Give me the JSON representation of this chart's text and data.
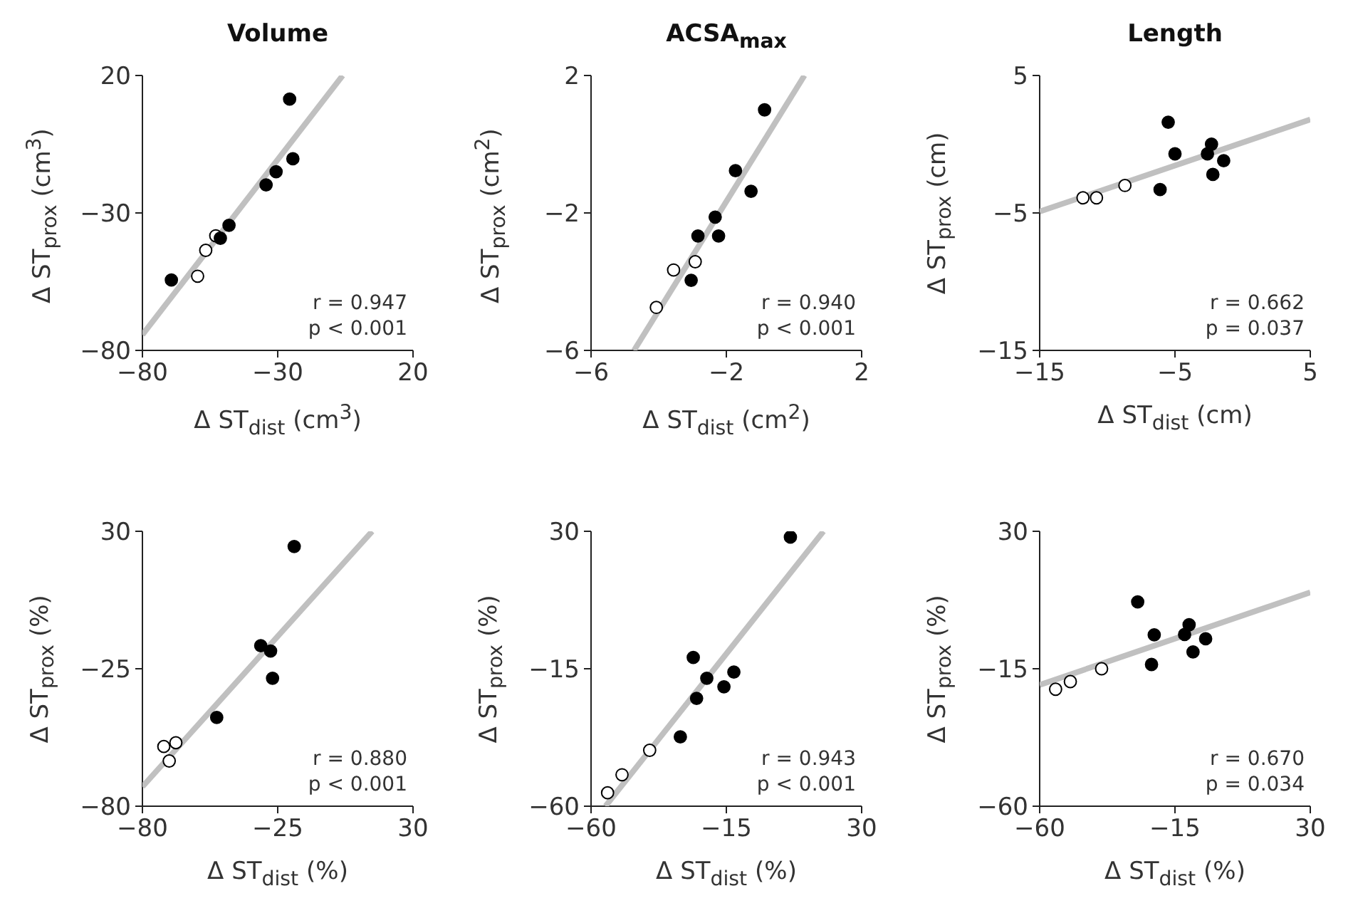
{
  "chart_data": [
    {
      "type": "scatter",
      "title": "Volume",
      "xlabel": "Δ ST$_{dist}$ (cm$^{3}$)",
      "ylabel": "Δ ST$_{prox}$ (cm$^{3}$)",
      "xlim": [
        -80,
        20
      ],
      "xticks": [
        -80,
        -30,
        20
      ],
      "ylim": [
        -80,
        20
      ],
      "yticks": [
        -80,
        -30,
        20
      ],
      "marker": "circle",
      "annotations": [
        "r = 0.947",
        "p < 0.001"
      ],
      "series": [
        {
          "color": "#000000",
          "x": [
            -25.6,
            -24.4,
            -30.6,
            -34.3,
            -48,
            -51.2,
            -69.3
          ],
          "values": [
            11.4,
            -10.3,
            -15,
            -19.8,
            -34.5,
            -39.2,
            -54.4
          ]
        },
        {
          "color": "#ffffff",
          "x": [
            -52.9,
            -56.6,
            -59.6
          ],
          "values": [
            -38.3,
            -43.6,
            -53
          ]
        },
        {
          "type": "line",
          "marker": "none",
          "color": "#c0c0c0",
          "x": [
            -80,
            -6
          ],
          "values": [
            -74.3,
            20
          ]
        }
      ]
    },
    {
      "type": "scatter",
      "title": "ACSA$_{max}$",
      "xlabel": "Δ ST$_{dist}$ (cm$^{2}$)",
      "ylabel": "Δ ST$_{prox}$ (cm$^{2}$)",
      "xlim": [
        -6,
        2
      ],
      "xticks": [
        -6,
        -2,
        2
      ],
      "ylim": [
        -6,
        2
      ],
      "yticks": [
        -6,
        -2,
        2
      ],
      "marker": "circle",
      "annotations": [
        "r = 0.940",
        "p < 0.001"
      ],
      "series": [
        {
          "color": "#000000",
          "x": [
            -0.87,
            -1.73,
            -1.27,
            -2.33,
            -2.84,
            -2.23,
            -3.04
          ],
          "values": [
            1,
            -0.77,
            -1.37,
            -2.12,
            -2.67,
            -2.67,
            -3.96
          ]
        },
        {
          "color": "#ffffff",
          "x": [
            -2.92,
            -3.56,
            -4.07
          ],
          "values": [
            -3.42,
            -3.66,
            -4.75
          ]
        },
        {
          "type": "line",
          "marker": "none",
          "color": "#c0c0c0",
          "x": [
            -4.73,
            0.31
          ],
          "values": [
            -6,
            2
          ]
        }
      ]
    },
    {
      "type": "scatter",
      "title": "Length",
      "xlabel": "Δ ST$_{dist}$ (cm)",
      "ylabel": "Δ ST$_{prox}$ (cm)",
      "xlim": [
        -15,
        5
      ],
      "xticks": [
        -15,
        -5,
        5
      ],
      "ylim": [
        -15,
        5
      ],
      "yticks": [
        -15,
        -5,
        5
      ],
      "marker": "circle",
      "annotations": [
        "r = 0.662",
        "p = 0.037"
      ],
      "series": [
        {
          "color": "#000000",
          "x": [
            -5.5,
            -5,
            -2.3,
            -2.6,
            -1.4,
            -2.2,
            -6.1
          ],
          "values": [
            1.6,
            -0.7,
            0,
            -0.7,
            -1.2,
            -2.2,
            -3.3
          ]
        },
        {
          "color": "#ffffff",
          "x": [
            -11.8,
            -10.8,
            -8.7
          ],
          "values": [
            -3.9,
            -3.9,
            -3
          ]
        },
        {
          "type": "line",
          "marker": "none",
          "color": "#c0c0c0",
          "x": [
            -15,
            5
          ],
          "values": [
            -4.9,
            1.8
          ]
        }
      ]
    },
    {
      "type": "scatter",
      "xlabel": "Δ ST$_{dist}$ (%)",
      "ylabel": "Δ ST$_{prox}$ (%)",
      "xlim": [
        -80,
        30
      ],
      "xticks": [
        -80,
        -25,
        30
      ],
      "ylim": [
        -80,
        30
      ],
      "yticks": [
        -80,
        -25,
        30
      ],
      "marker": "circle",
      "annotations": [
        "r = 0.880",
        "p < 0.001"
      ],
      "series": [
        {
          "color": "#000000",
          "x": [
            -18.3,
            -31.9,
            -27.9,
            -27.1,
            -49.8
          ],
          "values": [
            23.9,
            -15.8,
            -17.9,
            -28.8,
            -44.5
          ]
        },
        {
          "color": "#ffffff",
          "x": [
            -71.3,
            -66.4,
            -69.1
          ],
          "values": [
            -56.1,
            -54.6,
            -61.9
          ]
        },
        {
          "type": "line",
          "marker": "none",
          "color": "#c0c0c0",
          "x": [
            -80,
            13.4
          ],
          "values": [
            -72.2,
            30
          ]
        }
      ]
    },
    {
      "type": "scatter",
      "xlabel": "Δ ST$_{dist}$ (%)",
      "ylabel": "Δ ST$_{prox}$ (%)",
      "xlim": [
        -60,
        30
      ],
      "xticks": [
        -60,
        -15,
        30
      ],
      "ylim": [
        -60,
        30
      ],
      "yticks": [
        -60,
        -15,
        30
      ],
      "marker": "circle",
      "annotations": [
        "r = 0.943",
        "p < 0.001"
      ],
      "series": [
        {
          "color": "#000000",
          "x": [
            6.3,
            -26,
            -21.5,
            -12.5,
            -15.8,
            -24.9,
            -30.3
          ],
          "values": [
            28.1,
            -11.3,
            -18.1,
            -16.1,
            -20.9,
            -24.7,
            -37.3
          ]
        },
        {
          "color": "#ffffff",
          "x": [
            -40.5,
            -49.7,
            -54.5
          ],
          "values": [
            -41.7,
            -49.7,
            -55.6
          ]
        },
        {
          "type": "line",
          "marker": "none",
          "color": "#c0c0c0",
          "x": [
            -55.2,
            17.3
          ],
          "values": [
            -60,
            30
          ]
        }
      ]
    },
    {
      "type": "scatter",
      "xlabel": "Δ ST$_{dist}$ (%)",
      "ylabel": "Δ ST$_{prox}$ (%)",
      "xlim": [
        -60,
        30
      ],
      "xticks": [
        -60,
        -15,
        30
      ],
      "ylim": [
        -60,
        30
      ],
      "yticks": [
        -60,
        -15,
        30
      ],
      "marker": "circle",
      "annotations": [
        "r = 0.670",
        "p = 0.034"
      ],
      "series": [
        {
          "color": "#000000",
          "x": [
            -27.4,
            -21.9,
            -22.8,
            -10.3,
            -11.8,
            -4.8,
            -9
          ],
          "values": [
            6.9,
            -3.9,
            -13.6,
            -0.6,
            -3.8,
            -5.2,
            -9.5
          ]
        },
        {
          "color": "#ffffff",
          "x": [
            -54.7,
            -49.8,
            -39.4
          ],
          "values": [
            -21.7,
            -19.2,
            -15
          ]
        },
        {
          "type": "line",
          "marker": "none",
          "color": "#c0c0c0",
          "x": [
            -60,
            30
          ],
          "values": [
            -20.3,
            10
          ]
        }
      ]
    }
  ]
}
